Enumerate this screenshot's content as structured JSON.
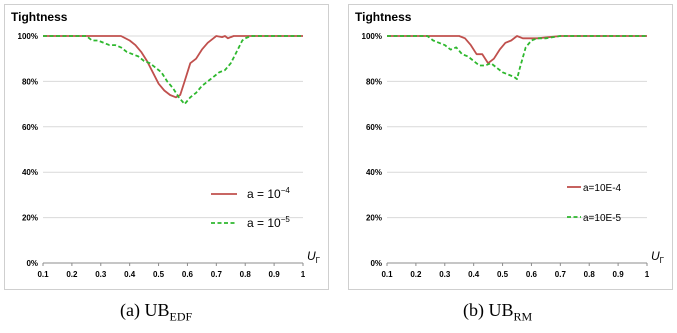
{
  "chart_data": [
    {
      "type": "line",
      "title": "Tightness",
      "xlabel": "U",
      "xlabel_sub": "Γ",
      "ylabel": "",
      "xlim": [
        0.1,
        1.0
      ],
      "ylim": [
        0,
        100
      ],
      "x_ticks": [
        "0.1",
        "0.2",
        "0.3",
        "0.4",
        "0.5",
        "0.6",
        "0.7",
        "0.8",
        "0.9",
        "1"
      ],
      "y_ticks": [
        "0%",
        "20%",
        "40%",
        "60%",
        "80%",
        "100%"
      ],
      "grid": "horizontal",
      "legend_position": "right",
      "legend_style": "math",
      "series": [
        {
          "name": "a = 10",
          "name_exp": "−4",
          "color": "#c0504d",
          "dash": "solid",
          "x": [
            0.1,
            0.2,
            0.3,
            0.33,
            0.37,
            0.4,
            0.42,
            0.44,
            0.46,
            0.48,
            0.5,
            0.52,
            0.54,
            0.56,
            0.575,
            0.59,
            0.61,
            0.63,
            0.65,
            0.67,
            0.69,
            0.7,
            0.72,
            0.73,
            0.74,
            0.75,
            0.76,
            0.8,
            0.9,
            1.0
          ],
          "values": [
            100,
            100,
            100,
            100,
            100,
            98,
            96,
            93,
            89,
            84,
            79,
            76,
            74,
            73,
            74,
            80,
            88,
            90,
            94,
            97,
            99,
            100,
            99.5,
            100,
            99,
            99.5,
            100,
            100,
            100,
            100
          ]
        },
        {
          "name": "a = 10",
          "name_exp": "−5",
          "color": "#2eb82e",
          "dash": "dashed",
          "x": [
            0.1,
            0.2,
            0.25,
            0.27,
            0.29,
            0.31,
            0.33,
            0.35,
            0.37,
            0.39,
            0.41,
            0.43,
            0.45,
            0.47,
            0.49,
            0.51,
            0.53,
            0.55,
            0.57,
            0.59,
            0.61,
            0.63,
            0.65,
            0.67,
            0.69,
            0.71,
            0.73,
            0.75,
            0.77,
            0.79,
            0.8,
            0.82,
            0.85,
            0.9,
            1.0
          ],
          "values": [
            100,
            100,
            100,
            98,
            98,
            97,
            96,
            96,
            95,
            93,
            92,
            91,
            89,
            88,
            86,
            84,
            80,
            77,
            73,
            70,
            73,
            75,
            78,
            80,
            82,
            84,
            85,
            88,
            93,
            98,
            99,
            100,
            100,
            100,
            100
          ]
        }
      ],
      "caption": "(a)  UB",
      "caption_sub": "EDF"
    },
    {
      "type": "line",
      "title": "Tightness",
      "xlabel": "U",
      "xlabel_sub": "Γ",
      "ylabel": "",
      "xlim": [
        0.1,
        1.0
      ],
      "ylim": [
        0,
        100
      ],
      "x_ticks": [
        "0.1",
        "0.2",
        "0.3",
        "0.4",
        "0.5",
        "0.6",
        "0.7",
        "0.8",
        "0.9",
        "1"
      ],
      "y_ticks": [
        "0%",
        "20%",
        "40%",
        "60%",
        "80%",
        "100%"
      ],
      "grid": "horizontal",
      "legend_position": "right",
      "legend_style": "plain",
      "series": [
        {
          "name": "a=10E-4",
          "color": "#c0504d",
          "dash": "solid",
          "x": [
            0.1,
            0.2,
            0.3,
            0.35,
            0.37,
            0.39,
            0.41,
            0.43,
            0.45,
            0.47,
            0.49,
            0.51,
            0.53,
            0.55,
            0.57,
            0.59,
            0.62,
            0.7,
            0.8,
            0.9,
            1.0
          ],
          "values": [
            100,
            100,
            100,
            100,
            99,
            96,
            92,
            92,
            88,
            90,
            94,
            97,
            98,
            100,
            99,
            99,
            99,
            100,
            100,
            100,
            100
          ]
        },
        {
          "name": "a=10E-5",
          "color": "#2eb82e",
          "dash": "dashed",
          "x": [
            0.1,
            0.2,
            0.24,
            0.26,
            0.28,
            0.3,
            0.32,
            0.34,
            0.36,
            0.38,
            0.4,
            0.42,
            0.44,
            0.46,
            0.48,
            0.5,
            0.52,
            0.54,
            0.55,
            0.56,
            0.58,
            0.6,
            0.62,
            0.65,
            0.7,
            0.8,
            0.9,
            1.0
          ],
          "values": [
            100,
            100,
            100,
            98,
            97,
            96,
            94,
            95,
            92,
            91,
            89,
            87,
            87,
            88,
            86,
            84,
            83,
            82,
            81,
            86,
            95,
            98,
            99,
            99,
            100,
            100,
            100,
            100
          ]
        }
      ],
      "caption": "(b)  UB",
      "caption_sub": "RM"
    }
  ]
}
